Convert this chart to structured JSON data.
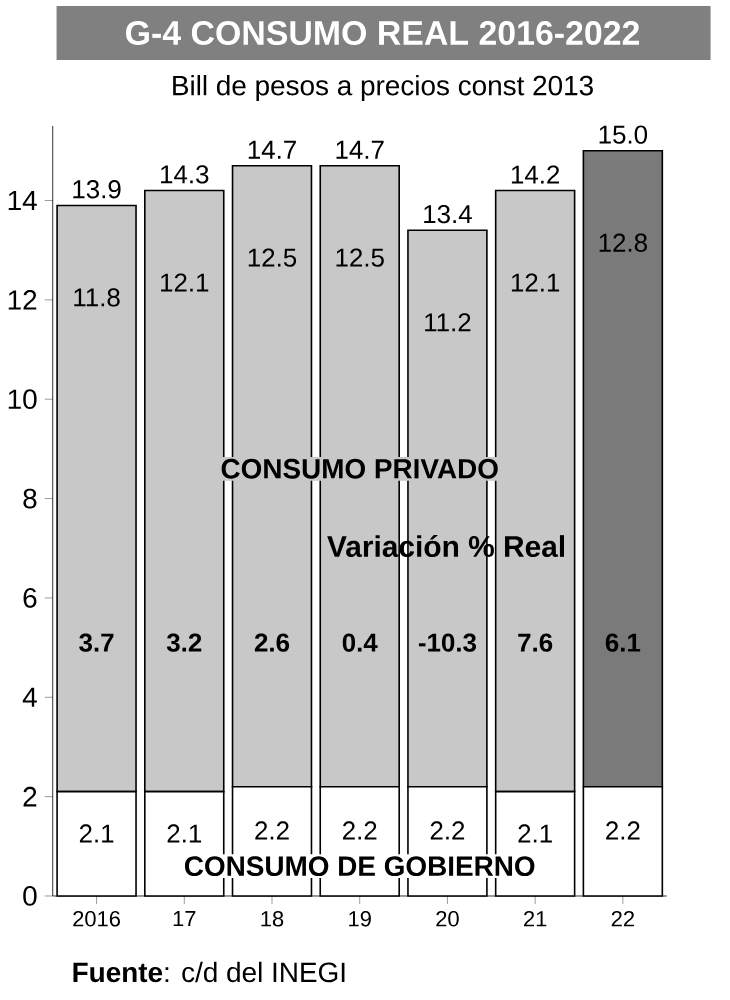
{
  "chart_data": {
    "type": "bar",
    "title": "G-4 CONSUMO REAL 2016-2022",
    "subtitle": "Bill de pesos a precios const 2013",
    "categories": [
      "2016",
      "17",
      "18",
      "19",
      "20",
      "21",
      "22"
    ],
    "stacked": true,
    "series": [
      {
        "name": "CONSUMO DE GOBIERNO",
        "color": "#ffffff",
        "values": [
          2.1,
          2.1,
          2.2,
          2.2,
          2.2,
          2.1,
          2.2
        ]
      },
      {
        "name": "CONSUMO PRIVADO",
        "colors": [
          "#c8c8c8",
          "#c8c8c8",
          "#c8c8c8",
          "#c8c8c8",
          "#c8c8c8",
          "#c8c8c8",
          "#7a7a7a"
        ],
        "values": [
          11.8,
          12.1,
          12.5,
          12.5,
          11.2,
          12.1,
          12.8
        ]
      }
    ],
    "data_labels": true,
    "totals": [
      "13.9",
      "14.3",
      "14.7",
      "14.7",
      "13.4",
      "14.2",
      "15.0"
    ],
    "ylim": [
      0,
      15.5
    ],
    "yticks": [
      0,
      2,
      4,
      6,
      8,
      10,
      12,
      14
    ],
    "annotations": [
      "Variación % Real",
      "3.7",
      "3.2",
      "2.6",
      "0.4",
      "-10.3",
      "7.6",
      "6.1",
      "**Fuente**: c/d del INEGI"
    ]
  }
}
